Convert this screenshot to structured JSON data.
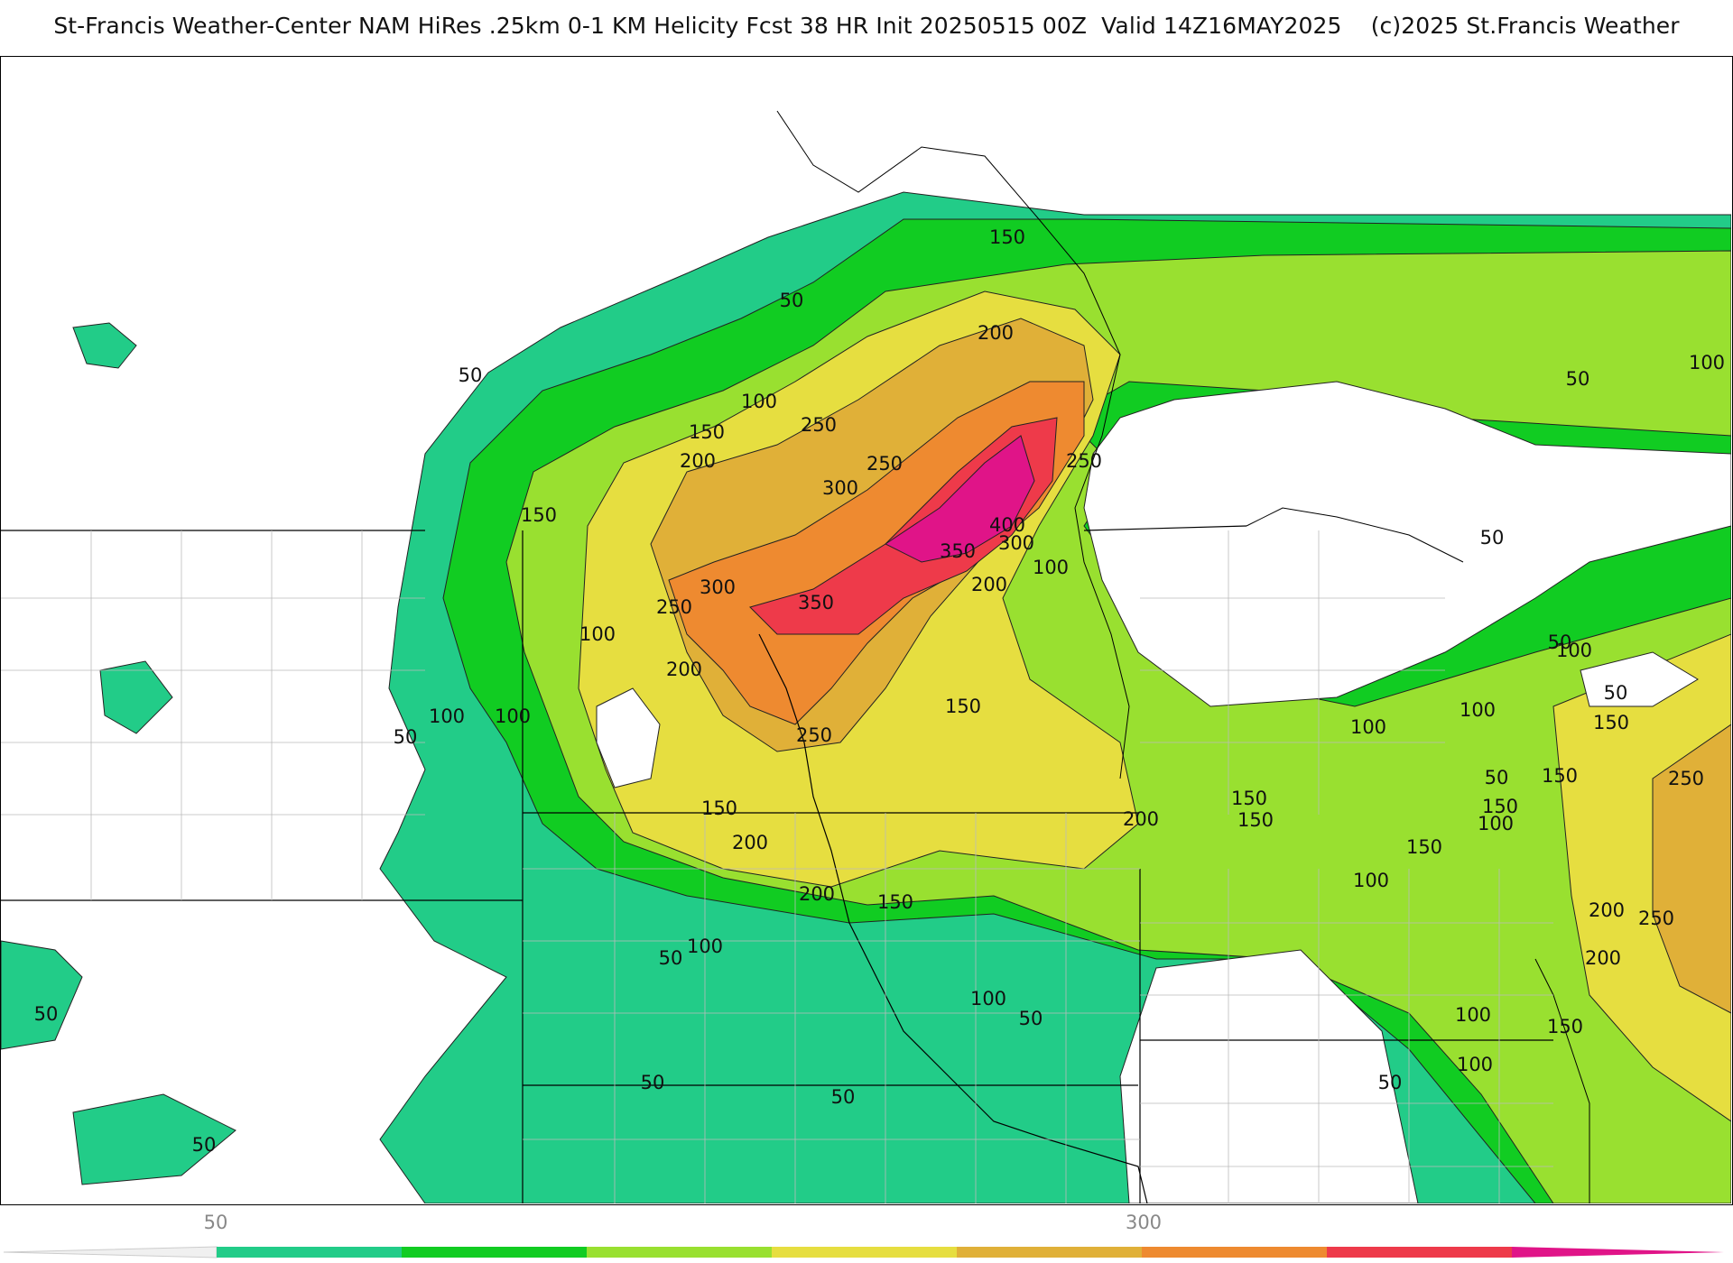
{
  "title": "St-Francis Weather-Center NAM HiRes .25km 0-1 KM Helicity Fcst 38 HR Init 20250515 00Z  Valid 14Z16MAY2025    (c)2025 St.Francis Weather",
  "legend": {
    "ticks": [
      "50",
      "300"
    ],
    "colors": [
      "#22cc88",
      "#11cc22",
      "#99e030",
      "#e6de40",
      "#e0b038",
      "#ee8a30",
      "#ee3a4a",
      "#e01488"
    ],
    "levels": [
      50,
      100,
      150,
      200,
      250,
      300,
      350,
      400
    ]
  },
  "contour_labels": [
    {
      "text": "150"
    },
    {
      "text": "50"
    },
    {
      "text": "200"
    },
    {
      "text": "50"
    },
    {
      "text": "100"
    },
    {
      "text": "250"
    },
    {
      "text": "150"
    },
    {
      "text": "200"
    },
    {
      "text": "250"
    },
    {
      "text": "300"
    },
    {
      "text": "250"
    },
    {
      "text": "400"
    },
    {
      "text": "300"
    },
    {
      "text": "350"
    },
    {
      "text": "100"
    },
    {
      "text": "200"
    },
    {
      "text": "150"
    },
    {
      "text": "300"
    },
    {
      "text": "350"
    },
    {
      "text": "250"
    },
    {
      "text": "100"
    },
    {
      "text": "200"
    },
    {
      "text": "100"
    },
    {
      "text": "50"
    },
    {
      "text": "100"
    },
    {
      "text": "150"
    },
    {
      "text": "250"
    },
    {
      "text": "150"
    },
    {
      "text": "200"
    },
    {
      "text": "200"
    },
    {
      "text": "150"
    },
    {
      "text": "200"
    },
    {
      "text": "150"
    },
    {
      "text": "50"
    },
    {
      "text": "100"
    },
    {
      "text": "100"
    },
    {
      "text": "50"
    },
    {
      "text": "50"
    },
    {
      "text": "50"
    },
    {
      "text": "50"
    },
    {
      "text": "50"
    },
    {
      "text": "100"
    },
    {
      "text": "50"
    },
    {
      "text": "150"
    },
    {
      "text": "150"
    },
    {
      "text": "100"
    },
    {
      "text": "50"
    },
    {
      "text": "150"
    },
    {
      "text": "100"
    },
    {
      "text": "50"
    },
    {
      "text": "100"
    },
    {
      "text": "50"
    },
    {
      "text": "100"
    },
    {
      "text": "150"
    },
    {
      "text": "250"
    },
    {
      "text": "200"
    },
    {
      "text": "150"
    },
    {
      "text": "100"
    },
    {
      "text": "250"
    },
    {
      "text": "200"
    },
    {
      "text": "100"
    },
    {
      "text": "150"
    },
    {
      "text": "50"
    },
    {
      "text": "100"
    },
    {
      "text": "50"
    }
  ]
}
